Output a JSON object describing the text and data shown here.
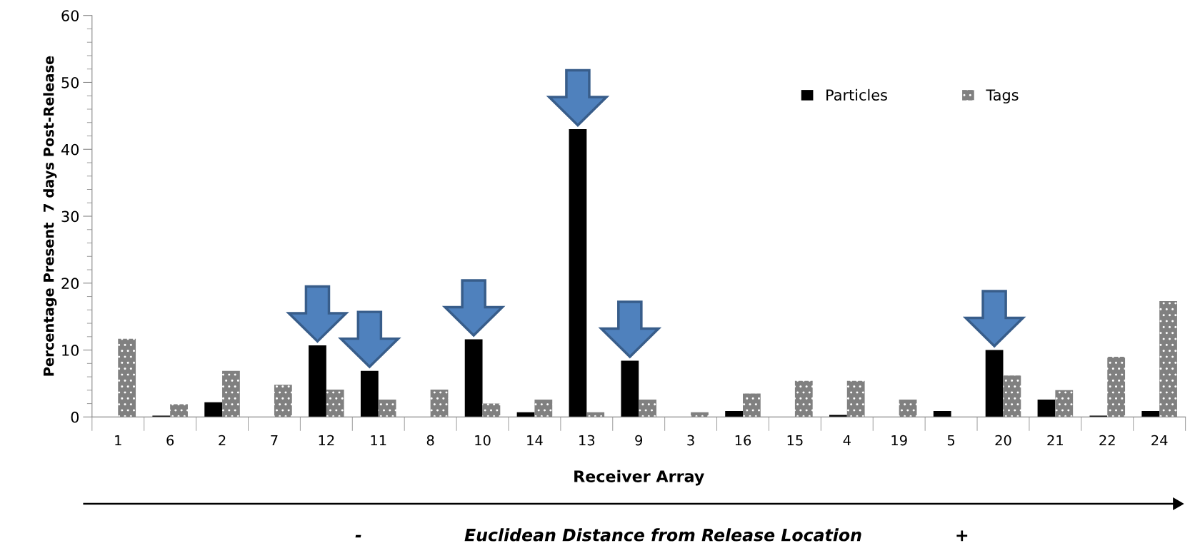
{
  "chart_data": {
    "type": "bar",
    "ylabel": "Percentage Present  7 days Post-Release",
    "xlabel": "Receiver Array",
    "categories": [
      "1",
      "6",
      "2",
      "7",
      "12",
      "11",
      "8",
      "10",
      "14",
      "13",
      "9",
      "3",
      "16",
      "15",
      "4",
      "19",
      "5",
      "20",
      "21",
      "22",
      "24"
    ],
    "series": [
      {
        "name": "Particles",
        "color": "#000000",
        "values": [
          0,
          0.2,
          2.2,
          0,
          10.7,
          6.9,
          0,
          11.6,
          0.7,
          43,
          8.4,
          0,
          0.9,
          0,
          0.3,
          0,
          0.9,
          10.0,
          2.6,
          0.2,
          0.9
        ]
      },
      {
        "name": "Tags",
        "color": "#808080",
        "values": [
          11.7,
          1.9,
          6.9,
          4.8,
          4.1,
          2.6,
          4.1,
          2.0,
          2.6,
          0.7,
          2.6,
          0.7,
          3.5,
          5.4,
          5.4,
          2.6,
          0,
          6.2,
          4.0,
          9.0,
          17.3
        ]
      }
    ],
    "ylim": [
      0,
      60
    ],
    "yticks": [
      0,
      10,
      20,
      30,
      40,
      50,
      60
    ],
    "grid": false,
    "legend": "top right",
    "annotations": [
      "-",
      "Euclidean Distance from Release Location",
      "+"
    ]
  }
}
